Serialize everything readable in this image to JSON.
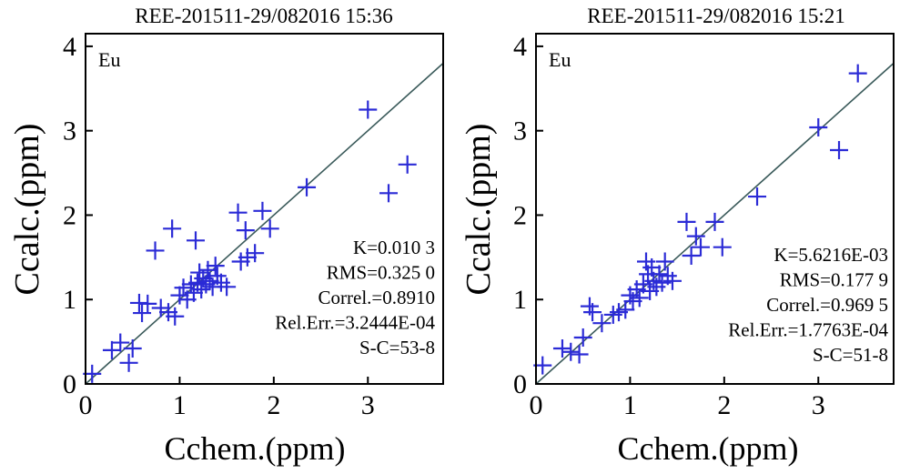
{
  "chart_data": [
    {
      "type": "scatter",
      "title": "REE-201511-29/082016 15:36",
      "xlabel": "Cchem.(ppm)",
      "ylabel": "Ccalc.(ppm)",
      "xlim": [
        0,
        3.8
      ],
      "ylim": [
        0,
        4.15
      ],
      "xticks": [
        "0",
        "1",
        "2",
        "3"
      ],
      "yticks": [
        "0",
        "1",
        "2",
        "3",
        "4"
      ],
      "element_label": "Eu",
      "grid": false,
      "marker_color": "#2b2bd6",
      "line_color": "#3a5a5a",
      "fit_line": {
        "slope": 1,
        "intercept": 0
      },
      "stats": [
        "K=0.010 3",
        "RMS=0.325 0",
        "Correl.=0.8910",
        "Rel.Err.=3.2444E-04",
        "S-C=53-8"
      ],
      "points": [
        {
          "x": 0.07,
          "y": 0.12
        },
        {
          "x": 0.28,
          "y": 0.4
        },
        {
          "x": 0.37,
          "y": 0.49
        },
        {
          "x": 0.46,
          "y": 0.25
        },
        {
          "x": 0.5,
          "y": 0.42
        },
        {
          "x": 0.57,
          "y": 0.96
        },
        {
          "x": 0.6,
          "y": 0.84
        },
        {
          "x": 0.66,
          "y": 0.95
        },
        {
          "x": 0.74,
          "y": 1.58
        },
        {
          "x": 0.8,
          "y": 0.9
        },
        {
          "x": 0.88,
          "y": 0.85
        },
        {
          "x": 0.92,
          "y": 1.84
        },
        {
          "x": 0.95,
          "y": 0.8
        },
        {
          "x": 1.0,
          "y": 1.05
        },
        {
          "x": 1.04,
          "y": 1.14
        },
        {
          "x": 1.08,
          "y": 1.0
        },
        {
          "x": 1.12,
          "y": 1.18
        },
        {
          "x": 1.15,
          "y": 1.08
        },
        {
          "x": 1.17,
          "y": 1.7
        },
        {
          "x": 1.19,
          "y": 1.2
        },
        {
          "x": 1.21,
          "y": 1.32
        },
        {
          "x": 1.23,
          "y": 1.12
        },
        {
          "x": 1.25,
          "y": 1.25
        },
        {
          "x": 1.28,
          "y": 1.18
        },
        {
          "x": 1.3,
          "y": 1.35
        },
        {
          "x": 1.32,
          "y": 1.22
        },
        {
          "x": 1.35,
          "y": 1.15
        },
        {
          "x": 1.38,
          "y": 1.4
        },
        {
          "x": 1.4,
          "y": 1.28
        },
        {
          "x": 1.44,
          "y": 1.2
        },
        {
          "x": 1.5,
          "y": 1.15
        },
        {
          "x": 1.62,
          "y": 2.03
        },
        {
          "x": 1.65,
          "y": 1.45
        },
        {
          "x": 1.7,
          "y": 1.82
        },
        {
          "x": 1.72,
          "y": 1.5
        },
        {
          "x": 1.8,
          "y": 1.55
        },
        {
          "x": 1.88,
          "y": 2.05
        },
        {
          "x": 1.96,
          "y": 1.84
        },
        {
          "x": 2.35,
          "y": 2.33
        },
        {
          "x": 3.0,
          "y": 3.25
        },
        {
          "x": 3.22,
          "y": 2.26
        },
        {
          "x": 3.42,
          "y": 2.6
        }
      ]
    },
    {
      "type": "scatter",
      "title": "REE-201511-29/082016 15:21",
      "xlabel": "Cchem.(ppm)",
      "ylabel": "Ccalc.(ppm)",
      "xlim": [
        0,
        3.8
      ],
      "ylim": [
        0,
        4.15
      ],
      "xticks": [
        "0",
        "1",
        "2",
        "3"
      ],
      "yticks": [
        "0",
        "1",
        "2",
        "3",
        "4"
      ],
      "element_label": "Eu",
      "grid": false,
      "marker_color": "#2b2bd6",
      "line_color": "#3a5a5a",
      "fit_line": {
        "slope": 1,
        "intercept": 0
      },
      "stats": [
        "K=5.6216E-03",
        "RMS=0.177 9",
        "Correl.=0.969 5",
        "Rel.Err.=1.7763E-04",
        "S-C=51-8"
      ],
      "points": [
        {
          "x": 0.07,
          "y": 0.22
        },
        {
          "x": 0.28,
          "y": 0.42
        },
        {
          "x": 0.37,
          "y": 0.38
        },
        {
          "x": 0.46,
          "y": 0.35
        },
        {
          "x": 0.5,
          "y": 0.55
        },
        {
          "x": 0.57,
          "y": 0.92
        },
        {
          "x": 0.6,
          "y": 0.85
        },
        {
          "x": 0.7,
          "y": 0.72
        },
        {
          "x": 0.82,
          "y": 0.82
        },
        {
          "x": 0.88,
          "y": 0.85
        },
        {
          "x": 0.95,
          "y": 0.88
        },
        {
          "x": 1.0,
          "y": 1.05
        },
        {
          "x": 1.03,
          "y": 0.98
        },
        {
          "x": 1.07,
          "y": 1.12
        },
        {
          "x": 1.1,
          "y": 1.02
        },
        {
          "x": 1.14,
          "y": 1.18
        },
        {
          "x": 1.17,
          "y": 1.45
        },
        {
          "x": 1.19,
          "y": 1.3
        },
        {
          "x": 1.21,
          "y": 1.1
        },
        {
          "x": 1.23,
          "y": 1.38
        },
        {
          "x": 1.25,
          "y": 1.22
        },
        {
          "x": 1.28,
          "y": 1.15
        },
        {
          "x": 1.31,
          "y": 1.3
        },
        {
          "x": 1.34,
          "y": 1.2
        },
        {
          "x": 1.37,
          "y": 1.45
        },
        {
          "x": 1.4,
          "y": 1.28
        },
        {
          "x": 1.45,
          "y": 1.22
        },
        {
          "x": 1.6,
          "y": 1.92
        },
        {
          "x": 1.65,
          "y": 1.52
        },
        {
          "x": 1.7,
          "y": 1.75
        },
        {
          "x": 1.75,
          "y": 1.62
        },
        {
          "x": 1.9,
          "y": 1.92
        },
        {
          "x": 1.98,
          "y": 1.62
        },
        {
          "x": 2.35,
          "y": 2.22
        },
        {
          "x": 3.0,
          "y": 3.04
        },
        {
          "x": 3.22,
          "y": 2.77
        },
        {
          "x": 3.42,
          "y": 3.68
        }
      ]
    }
  ]
}
